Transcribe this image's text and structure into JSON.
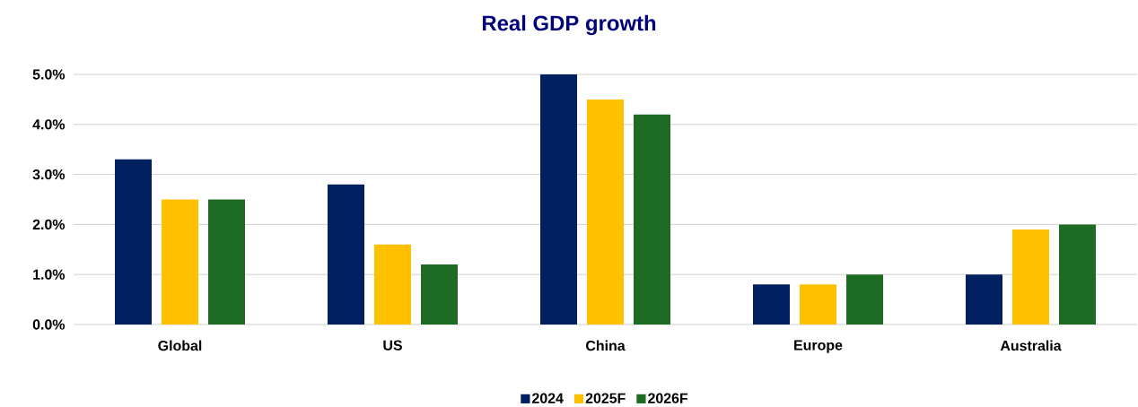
{
  "chart_data": {
    "type": "bar",
    "title": "Real GDP growth",
    "categories": [
      "Global",
      "US",
      "China",
      "Europe",
      "Australia"
    ],
    "series": [
      {
        "name": "2024",
        "color": "#002060",
        "values": [
          3.3,
          2.8,
          5.0,
          0.8,
          1.0
        ]
      },
      {
        "name": "2025F",
        "color": "#ffc000",
        "values": [
          2.5,
          1.6,
          4.5,
          0.8,
          1.9
        ]
      },
      {
        "name": "2026F",
        "color": "#1e6b24",
        "values": [
          2.5,
          1.2,
          4.2,
          1.0,
          2.0
        ]
      }
    ],
    "ylim": [
      0,
      5
    ],
    "yticks": [
      {
        "value": 0,
        "label": "0.0%"
      },
      {
        "value": 1,
        "label": "1.0%"
      },
      {
        "value": 2,
        "label": "2.0%"
      },
      {
        "value": 3,
        "label": "3.0%"
      },
      {
        "value": 4,
        "label": "4.0%"
      },
      {
        "value": 5,
        "label": "5.0%"
      }
    ],
    "grid": "y",
    "legend": "bottom"
  }
}
